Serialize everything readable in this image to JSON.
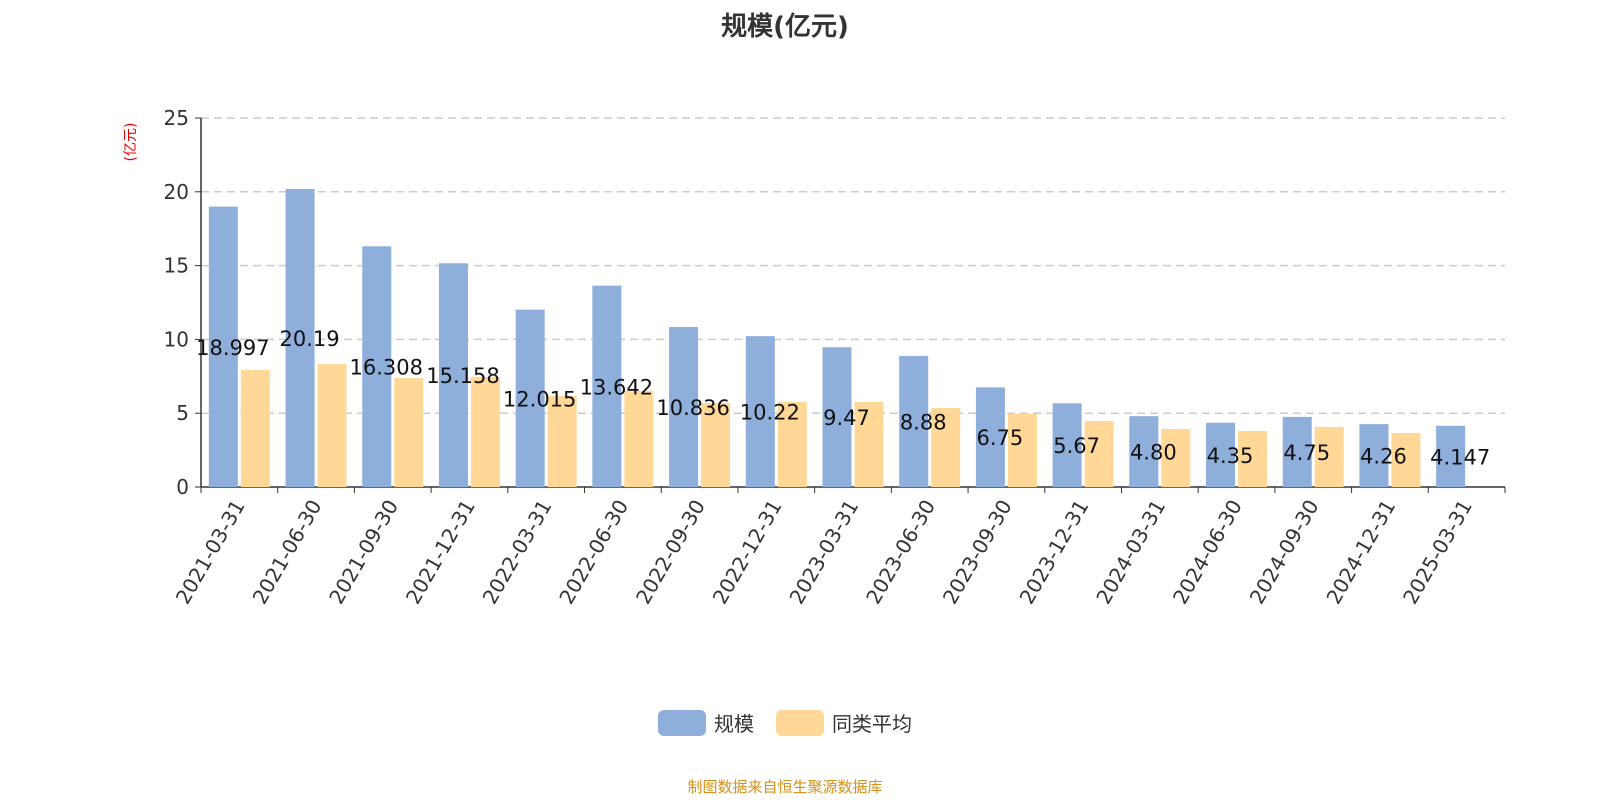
{
  "title": "规模(亿元)",
  "source": "制图数据来自恒生聚源数据库",
  "chart_data": {
    "type": "bar",
    "title": "规模(亿元)",
    "ylabel": "(亿元)",
    "ylim": [
      0,
      25
    ],
    "yticks": [
      0,
      5,
      10,
      15,
      20,
      25
    ],
    "grid": true,
    "legend_position": "bottom",
    "categories": [
      "2021-03-31",
      "2021-06-30",
      "2021-09-30",
      "2021-12-31",
      "2022-03-31",
      "2022-06-30",
      "2022-09-30",
      "2022-12-31",
      "2023-03-31",
      "2023-06-30",
      "2023-09-30",
      "2023-12-31",
      "2024-03-31",
      "2024-06-30",
      "2024-09-30",
      "2024-12-31",
      "2025-03-31"
    ],
    "series": [
      {
        "name": "规模",
        "color": "#8eaedb",
        "values": [
          18.997,
          20.19,
          16.308,
          15.158,
          12.015,
          13.642,
          10.836,
          10.22,
          9.47,
          8.88,
          6.75,
          5.67,
          4.8,
          4.35,
          4.75,
          4.26,
          4.147
        ],
        "labels": [
          "18.997",
          "20.19",
          "16.308",
          "15.158",
          "12.015",
          "13.642",
          "10.836",
          "10.22",
          "9.47",
          "8.88",
          "6.75",
          "5.67",
          "4.80",
          "4.35",
          "4.75",
          "4.26",
          "4.147"
        ]
      },
      {
        "name": "同类平均",
        "color": "#ffd898",
        "values": [
          7.93,
          8.33,
          7.38,
          7.45,
          6.17,
          6.5,
          5.69,
          5.76,
          5.76,
          5.35,
          4.95,
          4.47,
          3.93,
          3.79,
          4.07,
          3.66,
          null
        ]
      }
    ]
  }
}
